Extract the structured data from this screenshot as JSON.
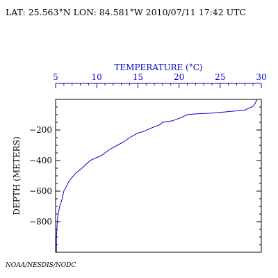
{
  "header": {
    "location_time": "LAT: 25.563°N LON: 84.581°W 2010/07/11 17:42 UTC"
  },
  "credit": "NOAA/NESDIS/NODC",
  "chart_data": {
    "type": "line",
    "title": "",
    "xlabel": "TEMPERATURE (°C)",
    "ylabel": "DEPTH (METERS)",
    "x_axis_position": "top",
    "xlim": [
      5,
      30
    ],
    "ylim": [
      -1000,
      0
    ],
    "x_ticks": [
      5,
      10,
      15,
      20,
      25,
      30
    ],
    "x_tick_labels": [
      "5",
      "10",
      "15",
      "20",
      "25",
      "30"
    ],
    "y_ticks": [
      -200,
      -400,
      -600,
      -800
    ],
    "y_tick_labels": [
      "−200",
      "−400",
      "−600",
      "−800"
    ],
    "grid": false,
    "colors": {
      "line": "#0000cc",
      "xaxis_text": "#0000cc",
      "frame": "#000000"
    },
    "series": [
      {
        "name": "",
        "x": [
          29.5,
          29.3,
          29.1,
          28.8,
          28.0,
          26.0,
          24.0,
          22.0,
          21.0,
          20.2,
          19.2,
          18.0,
          17.7,
          16.5,
          15.7,
          15.0,
          14.0,
          13.2,
          12.5,
          11.5,
          10.5,
          10.0,
          9.2,
          8.8,
          8.2,
          7.5,
          7.0,
          6.7,
          6.3,
          6.0,
          5.8,
          5.5,
          5.3,
          5.2,
          5.1,
          5.1
        ],
        "y": [
          0,
          -20,
          -40,
          -50,
          -70,
          -80,
          -90,
          -95,
          -100,
          -120,
          -140,
          -150,
          -165,
          -190,
          -210,
          -220,
          -250,
          -280,
          -300,
          -330,
          -370,
          -380,
          -400,
          -420,
          -450,
          -480,
          -510,
          -530,
          -570,
          -600,
          -650,
          -700,
          -750,
          -800,
          -900,
          -1000
        ]
      }
    ]
  }
}
